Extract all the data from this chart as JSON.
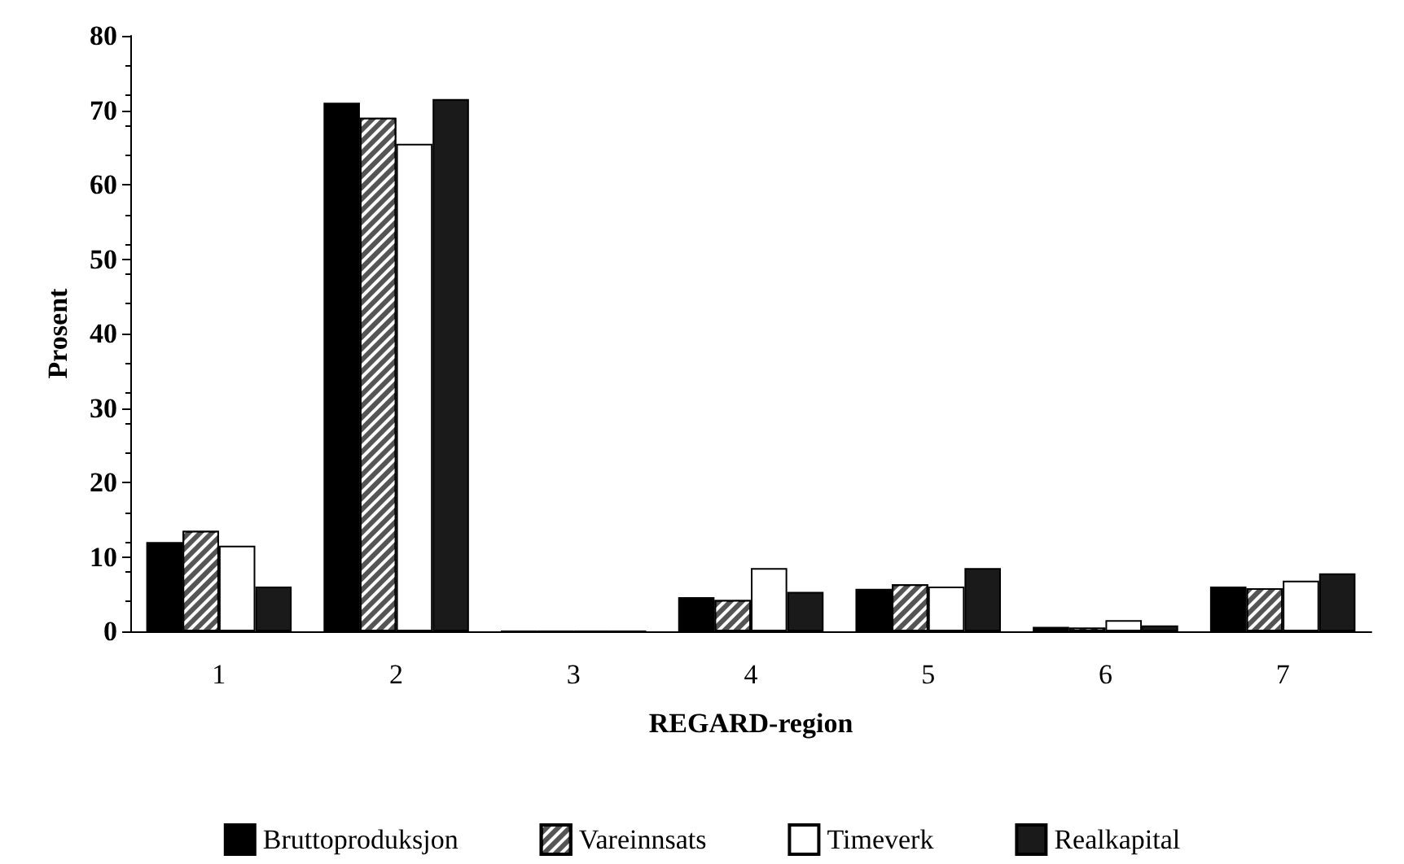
{
  "chart_data": {
    "type": "bar",
    "xlabel": "REGARD-region",
    "ylabel": "Prosent",
    "categories": [
      "1",
      "2",
      "3",
      "4",
      "5",
      "6",
      "7"
    ],
    "series": [
      {
        "name": "Bruttoproduksjon",
        "color": "#000000",
        "values": [
          12,
          71,
          0,
          4.6,
          5.7,
          0.6,
          6
        ]
      },
      {
        "name": "Vareinnsats",
        "color": "#555555",
        "values": [
          13.5,
          69,
          0,
          4.2,
          6.3,
          0.5,
          5.8
        ]
      },
      {
        "name": "Timeverk",
        "color": "#ffffff",
        "values": [
          11.5,
          65.5,
          0,
          8.5,
          6,
          1.5,
          6.8
        ]
      },
      {
        "name": "Realkapital",
        "color": "#1a1a1a",
        "values": [
          6,
          71.5,
          0,
          5.3,
          8.5,
          0.8,
          7.8
        ]
      }
    ],
    "ylim": [
      0,
      80
    ],
    "yticks": [
      0,
      10,
      20,
      30,
      40,
      50,
      60,
      70,
      80
    ],
    "grid": false,
    "legend": "bottom"
  }
}
